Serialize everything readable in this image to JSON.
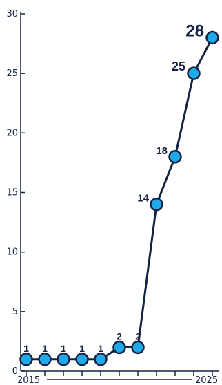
{
  "chart_data": {
    "type": "line",
    "title": "",
    "xlabel": "",
    "ylabel": "",
    "x": [
      2015,
      2016,
      2017,
      2018,
      2019,
      2020,
      2021,
      2022,
      2023,
      2024,
      2025
    ],
    "series": [
      {
        "values": [
          1,
          1,
          1,
          1,
          1,
          2,
          2,
          14,
          18,
          25,
          28
        ]
      }
    ],
    "data_labels": [
      "1",
      "1",
      "1",
      "1",
      "1",
      "2",
      "2",
      "14",
      "18",
      "25",
      "28"
    ],
    "ylim": [
      0,
      30
    ],
    "y_ticks": [
      "0",
      "5",
      "10",
      "15",
      "20",
      "25",
      "30"
    ],
    "x_tick_labels": [
      "2015",
      "2025"
    ],
    "grid": false,
    "legend": "none",
    "colors": {
      "line": "#152342",
      "marker_fill": "#1fa9e8",
      "marker_stroke": "#152342",
      "text": "#152342"
    }
  }
}
